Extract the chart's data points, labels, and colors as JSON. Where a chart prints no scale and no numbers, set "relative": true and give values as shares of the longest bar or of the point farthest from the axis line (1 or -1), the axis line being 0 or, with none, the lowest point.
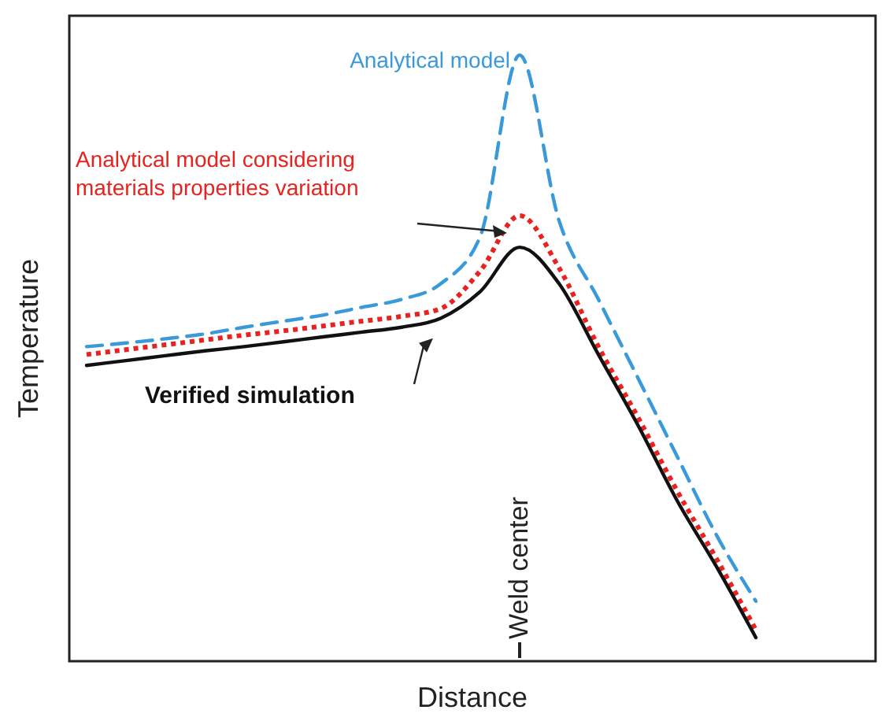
{
  "chart_data": {
    "type": "line",
    "relative": true,
    "xlabel": "Distance",
    "ylabel": "Temperature",
    "legend": false,
    "categories": [
      null,
      null,
      null,
      null,
      null,
      null,
      null,
      null,
      null,
      null,
      null,
      null,
      null,
      null,
      null,
      null,
      null,
      null
    ],
    "series": [
      {
        "name": "Analytical model",
        "color": "#3a9ad9",
        "line_style": "dashed",
        "values": [
          0.519,
          0.525,
          0.532,
          0.54,
          0.551,
          0.561,
          0.571,
          0.584,
          0.597,
          0.623,
          0.701,
          1,
          0.727,
          0.597,
          0.468,
          0.338,
          0.208,
          0.099
        ]
      },
      {
        "name": "Analytical model considering materials properties variation",
        "color": "#e8231f",
        "line_style": "dotted",
        "values": [
          0.506,
          0.514,
          0.522,
          0.53,
          0.538,
          0.545,
          0.553,
          0.561,
          0.569,
          0.582,
          0.644,
          0.735,
          0.649,
          0.519,
          0.403,
          0.281,
          0.169,
          0.052
        ]
      },
      {
        "name": "Verified simulation",
        "color": "#111111",
        "line_style": "solid",
        "values": [
          0.488,
          0.496,
          0.504,
          0.512,
          0.519,
          0.527,
          0.535,
          0.543,
          0.551,
          0.566,
          0.61,
          0.683,
          0.623,
          0.506,
          0.39,
          0.265,
          0.156,
          0.039
        ]
      }
    ],
    "annotations": [
      "Weld center"
    ]
  }
}
